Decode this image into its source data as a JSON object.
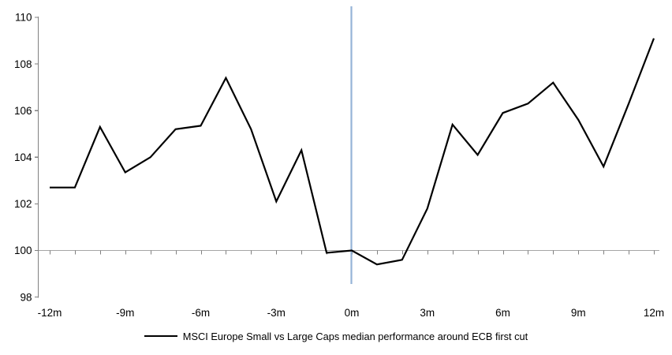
{
  "chart_data": {
    "type": "line",
    "title": "",
    "xlabel": "",
    "ylabel": "",
    "legend_label": "MSCI Europe Small vs Large Caps median performance around ECB first cut",
    "legend_position": "bottom-center",
    "grid": "off",
    "xlim": [
      -12,
      12
    ],
    "ylim": [
      98,
      110
    ],
    "x": [
      -12,
      -11,
      -10,
      -9,
      -8,
      -7,
      -6,
      -5,
      -4,
      -3,
      -2,
      -1,
      0,
      1,
      2,
      3,
      4,
      5,
      6,
      7,
      8,
      9,
      10,
      11,
      12
    ],
    "series": [
      {
        "name": "MSCI Europe Small vs Large Caps median performance around ECB first cut",
        "values": [
          102.7,
          102.7,
          105.3,
          103.35,
          104.0,
          105.2,
          105.35,
          107.4,
          105.2,
          102.1,
          104.3,
          99.9,
          100.0,
          99.4,
          99.6,
          101.8,
          105.4,
          104.1,
          105.9,
          106.3,
          107.2,
          105.6,
          103.6,
          106.3,
          109.1
        ]
      }
    ],
    "x_ticks": [
      {
        "pos": -12,
        "label": "-12m"
      },
      {
        "pos": -9,
        "label": "-9m"
      },
      {
        "pos": -6,
        "label": "-6m"
      },
      {
        "pos": -3,
        "label": "-3m"
      },
      {
        "pos": 0,
        "label": "0m"
      },
      {
        "pos": 3,
        "label": "3m"
      },
      {
        "pos": 6,
        "label": "6m"
      },
      {
        "pos": 9,
        "label": "9m"
      },
      {
        "pos": 12,
        "label": "12m"
      }
    ],
    "y_ticks": [
      98,
      100,
      102,
      104,
      106,
      108,
      110
    ],
    "baseline": 100,
    "event_line_x": 0,
    "colors": {
      "series": "#000000",
      "event_line": "#95B3D7",
      "baseline": "#A6A6A6",
      "axis": "#808080",
      "label": "#000000"
    }
  }
}
